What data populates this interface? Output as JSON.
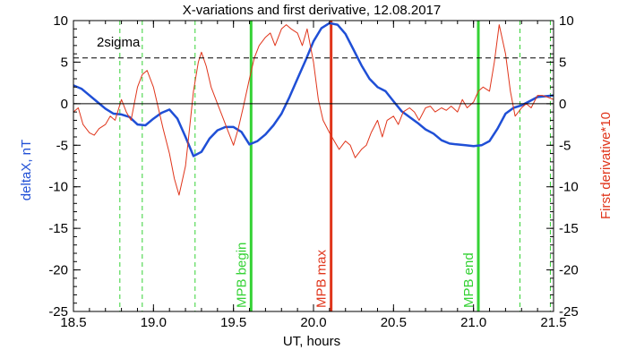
{
  "chart_data": {
    "type": "line",
    "title": "X-variations and first derivative, 12.08.2017",
    "xlabel": "UT, hours",
    "ylabel_left": "deltaX, nT",
    "ylabel_right": "First derivative*10",
    "xlim": [
      18.5,
      21.5
    ],
    "ylim": [
      -25,
      10
    ],
    "x_ticks": [
      "18.5",
      "19.0",
      "19.5",
      "20.0",
      "20.5",
      "21.0",
      "21.5"
    ],
    "y_ticks_left": [
      "10",
      "5",
      "0",
      "-5",
      "-10",
      "-15",
      "-20",
      "-25"
    ],
    "y_ticks_right": [
      "10",
      "5",
      "0",
      "-5",
      "-10",
      "-15",
      "-20",
      "-25"
    ],
    "threshold": {
      "label": "2sigma",
      "value": 5.5,
      "style": "dashed",
      "color": "#000000"
    },
    "zero_line": 0,
    "series": [
      {
        "name": "deltaX, nT",
        "color": "#1f4fd6",
        "x": [
          18.5,
          18.55,
          18.6,
          18.65,
          18.7,
          18.75,
          18.8,
          18.85,
          18.9,
          18.95,
          19.0,
          19.05,
          19.1,
          19.15,
          19.2,
          19.25,
          19.3,
          19.35,
          19.4,
          19.45,
          19.5,
          19.55,
          19.6,
          19.65,
          19.7,
          19.75,
          19.8,
          19.85,
          19.9,
          19.95,
          20.0,
          20.05,
          20.1,
          20.15,
          20.2,
          20.25,
          20.3,
          20.35,
          20.4,
          20.45,
          20.5,
          20.55,
          20.6,
          20.65,
          20.7,
          20.75,
          20.8,
          20.85,
          20.9,
          20.95,
          21.0,
          21.05,
          21.1,
          21.15,
          21.2,
          21.25,
          21.3,
          21.35,
          21.4,
          21.45,
          21.5
        ],
        "values": [
          2.2,
          1.8,
          1.0,
          0.2,
          -0.6,
          -1.2,
          -1.3,
          -1.6,
          -2.5,
          -2.6,
          -1.8,
          -1.1,
          -0.7,
          -1.8,
          -4.0,
          -6.3,
          -5.8,
          -4.2,
          -3.2,
          -2.8,
          -2.8,
          -3.4,
          -4.9,
          -4.5,
          -3.7,
          -2.6,
          -1.2,
          0.8,
          3.0,
          5.2,
          7.5,
          9.1,
          9.7,
          9.5,
          8.4,
          6.5,
          4.6,
          3.0,
          2.0,
          1.5,
          0.3,
          -0.9,
          -1.6,
          -2.3,
          -3.1,
          -3.6,
          -4.4,
          -4.8,
          -4.9,
          -5.0,
          -5.1,
          -5.0,
          -4.5,
          -3.0,
          -1.2,
          -0.5,
          -0.2,
          0.3,
          0.8,
          0.9,
          1.0
        ]
      },
      {
        "name": "First derivative*10",
        "color": "#e0351b",
        "x": [
          18.5,
          18.53,
          18.56,
          18.6,
          18.63,
          18.66,
          18.7,
          18.73,
          18.76,
          18.8,
          18.83,
          18.86,
          18.9,
          18.93,
          18.96,
          19.0,
          19.03,
          19.06,
          19.1,
          19.13,
          19.16,
          19.2,
          19.22,
          19.25,
          19.28,
          19.3,
          19.33,
          19.36,
          19.4,
          19.43,
          19.46,
          19.5,
          19.53,
          19.56,
          19.6,
          19.63,
          19.66,
          19.7,
          19.73,
          19.76,
          19.8,
          19.83,
          19.86,
          19.9,
          19.93,
          19.96,
          20.0,
          20.03,
          20.06,
          20.1,
          20.13,
          20.16,
          20.2,
          20.23,
          20.26,
          20.3,
          20.33,
          20.36,
          20.4,
          20.43,
          20.46,
          20.5,
          20.53,
          20.56,
          20.6,
          20.63,
          20.66,
          20.7,
          20.73,
          20.76,
          20.8,
          20.83,
          20.86,
          20.9,
          20.93,
          20.96,
          21.0,
          21.03,
          21.06,
          21.1,
          21.13,
          21.16,
          21.2,
          21.23,
          21.26,
          21.3,
          21.33,
          21.36,
          21.4,
          21.43,
          21.46,
          21.5
        ],
        "values": [
          -1.0,
          -0.5,
          -2.5,
          -3.5,
          -3.8,
          -3.0,
          -2.5,
          -1.5,
          -2.0,
          0.5,
          -1.0,
          -2.0,
          2.0,
          3.5,
          4.0,
          2.0,
          -0.5,
          -3.0,
          -6.0,
          -9.0,
          -11.0,
          -7.5,
          -4.0,
          1.5,
          5.0,
          6.2,
          4.5,
          2.0,
          0.0,
          -1.5,
          -3.0,
          -5.0,
          -3.0,
          -0.5,
          3.0,
          5.5,
          7.0,
          8.0,
          8.5,
          7.0,
          9.0,
          9.5,
          9.0,
          8.5,
          7.0,
          9.0,
          5.0,
          0.5,
          -2.0,
          -3.5,
          -4.5,
          -5.5,
          -4.5,
          -5.0,
          -6.5,
          -5.5,
          -5.0,
          -3.5,
          -2.0,
          -4.0,
          -2.0,
          -1.5,
          -2.5,
          -1.0,
          -0.5,
          -1.0,
          -2.0,
          -0.5,
          -0.3,
          -1.0,
          -0.5,
          -0.8,
          -0.3,
          -1.0,
          0.5,
          -0.5,
          0.2,
          1.5,
          2.0,
          1.5,
          5.0,
          9.5,
          6.0,
          1.5,
          -1.5,
          -0.5,
          0.0,
          -0.5,
          1.0,
          1.0,
          0.8,
          0.5
        ]
      }
    ],
    "vertical_markers": [
      {
        "x": 18.79,
        "style": "dashed",
        "color": "#35d235"
      },
      {
        "x": 18.93,
        "style": "dashed",
        "color": "#35d235"
      },
      {
        "x": 19.26,
        "style": "dashed",
        "color": "#35d235"
      },
      {
        "x": 19.61,
        "style": "solid",
        "color": "#35d235",
        "label": "MPB begin"
      },
      {
        "x": 20.11,
        "style": "solid",
        "color": "#e0351b",
        "label": "MPB max"
      },
      {
        "x": 21.03,
        "style": "solid",
        "color": "#35d235",
        "label": "MPB end"
      },
      {
        "x": 21.29,
        "style": "dashed",
        "color": "#35d235"
      },
      {
        "x": 21.48,
        "style": "dashed",
        "color": "#35d235"
      }
    ]
  }
}
